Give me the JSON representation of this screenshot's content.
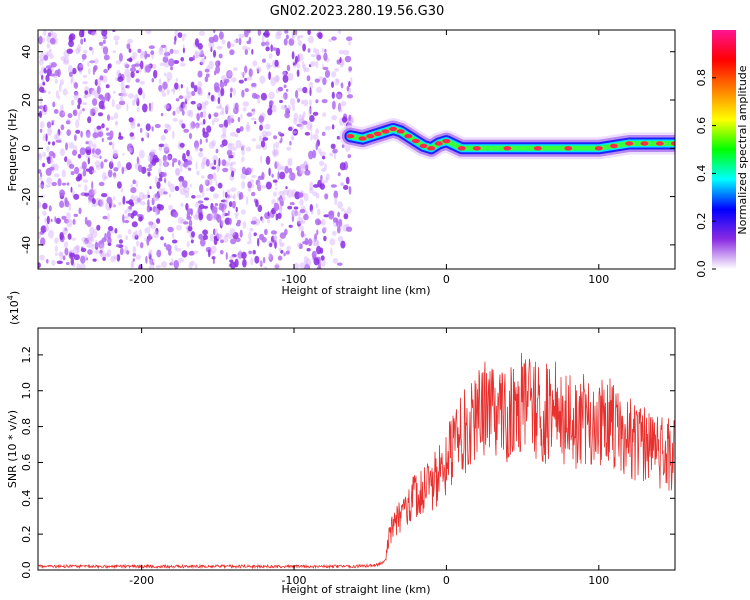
{
  "title": "GN02.2023.280.19.56.G30",
  "colors": {
    "snr_line": "#e8312e",
    "speckle": "#8a2be2",
    "track_core": "#ff2a4a",
    "axis": "#000000"
  },
  "chart_data": [
    {
      "type": "heatmap",
      "name_ref": "spectrogram",
      "xlabel": "Height of straight line (km)",
      "ylabel": "Frequency (Hz)",
      "xlim": [
        -268,
        150
      ],
      "ylim": [
        -50,
        49
      ],
      "xticks": [
        -200,
        -100,
        0,
        100
      ],
      "yticks": [
        -40,
        -20,
        0,
        20,
        40
      ],
      "xtick_labels": [
        "-200",
        "-100",
        "0",
        "100"
      ],
      "ytick_labels": [
        "-40",
        "-20",
        "0",
        "20",
        "40"
      ],
      "noise_region_x": [
        -268,
        -62
      ],
      "signal_track": {
        "x": [
          -63,
          -55,
          -50,
          -45,
          -40,
          -35,
          -30,
          -25,
          -20,
          -15,
          -10,
          -5,
          0,
          10,
          20,
          40,
          60,
          80,
          100,
          110,
          120,
          130,
          140,
          150
        ],
        "y": [
          5,
          4,
          5,
          6,
          7,
          8,
          7,
          5,
          3,
          1,
          0,
          2,
          3,
          0,
          0,
          0,
          0,
          0,
          0,
          1,
          2,
          2,
          2,
          2
        ]
      },
      "colorbar": {
        "label": "Normalized spectral amplitude",
        "range": [
          0.0,
          1.0
        ],
        "ticks": [
          0.0,
          0.2,
          0.4,
          0.6,
          0.8
        ],
        "tick_labels": [
          "0.0",
          "0.2",
          "0.4",
          "0.6",
          "0.8"
        ],
        "colormap": [
          "#ffffff",
          "#8a2be2",
          "#0000ff",
          "#00ffff",
          "#00ff00",
          "#ffff00",
          "#ff8000",
          "#ff0000",
          "#ff1493"
        ]
      },
      "grid": false,
      "legend": "none"
    },
    {
      "type": "line",
      "xlabel": "Height of straight line (km)",
      "ylabel": "SNR (10 * v/v)",
      "scale_label_base": "(x10",
      "scale_label_exp": "4",
      "scale_label_end": ")",
      "xlim": [
        -268,
        150
      ],
      "ylim": [
        0.0,
        1.35
      ],
      "xticks": [
        -200,
        -100,
        0,
        100
      ],
      "yticks": [
        0.0,
        0.2,
        0.4,
        0.6,
        0.8,
        1.0,
        1.2
      ],
      "xtick_labels": [
        "-200",
        "-100",
        "0",
        "100"
      ],
      "ytick_labels": [
        "0.0",
        "0.2",
        "0.4",
        "0.6",
        "0.8",
        "1.0",
        "1.2"
      ],
      "series": [
        {
          "x": [
            -268,
            -240,
            -200,
            -160,
            -120,
            -80,
            -60,
            -50,
            -45,
            -40,
            -38,
            -35,
            -30,
            -25,
            -20,
            -15,
            -10,
            -5,
            0,
            5,
            10,
            15,
            20,
            25,
            30,
            35,
            40,
            45,
            50,
            55,
            60,
            65,
            70,
            75,
            80,
            85,
            90,
            95,
            100,
            105,
            110,
            115,
            120,
            125,
            130,
            135,
            140,
            145,
            150
          ],
          "y": [
            0.02,
            0.02,
            0.02,
            0.02,
            0.02,
            0.02,
            0.02,
            0.025,
            0.03,
            0.05,
            0.18,
            0.25,
            0.3,
            0.35,
            0.42,
            0.45,
            0.48,
            0.52,
            0.62,
            0.7,
            0.75,
            0.8,
            0.85,
            0.88,
            0.92,
            0.9,
            0.88,
            0.92,
            0.95,
            0.9,
            0.88,
            0.87,
            0.9,
            0.86,
            0.85,
            0.83,
            0.85,
            0.8,
            0.82,
            0.85,
            0.8,
            0.78,
            0.75,
            0.72,
            0.7,
            0.68,
            0.65,
            0.64,
            0.66
          ]
        }
      ],
      "grid": false,
      "legend": "none"
    }
  ]
}
